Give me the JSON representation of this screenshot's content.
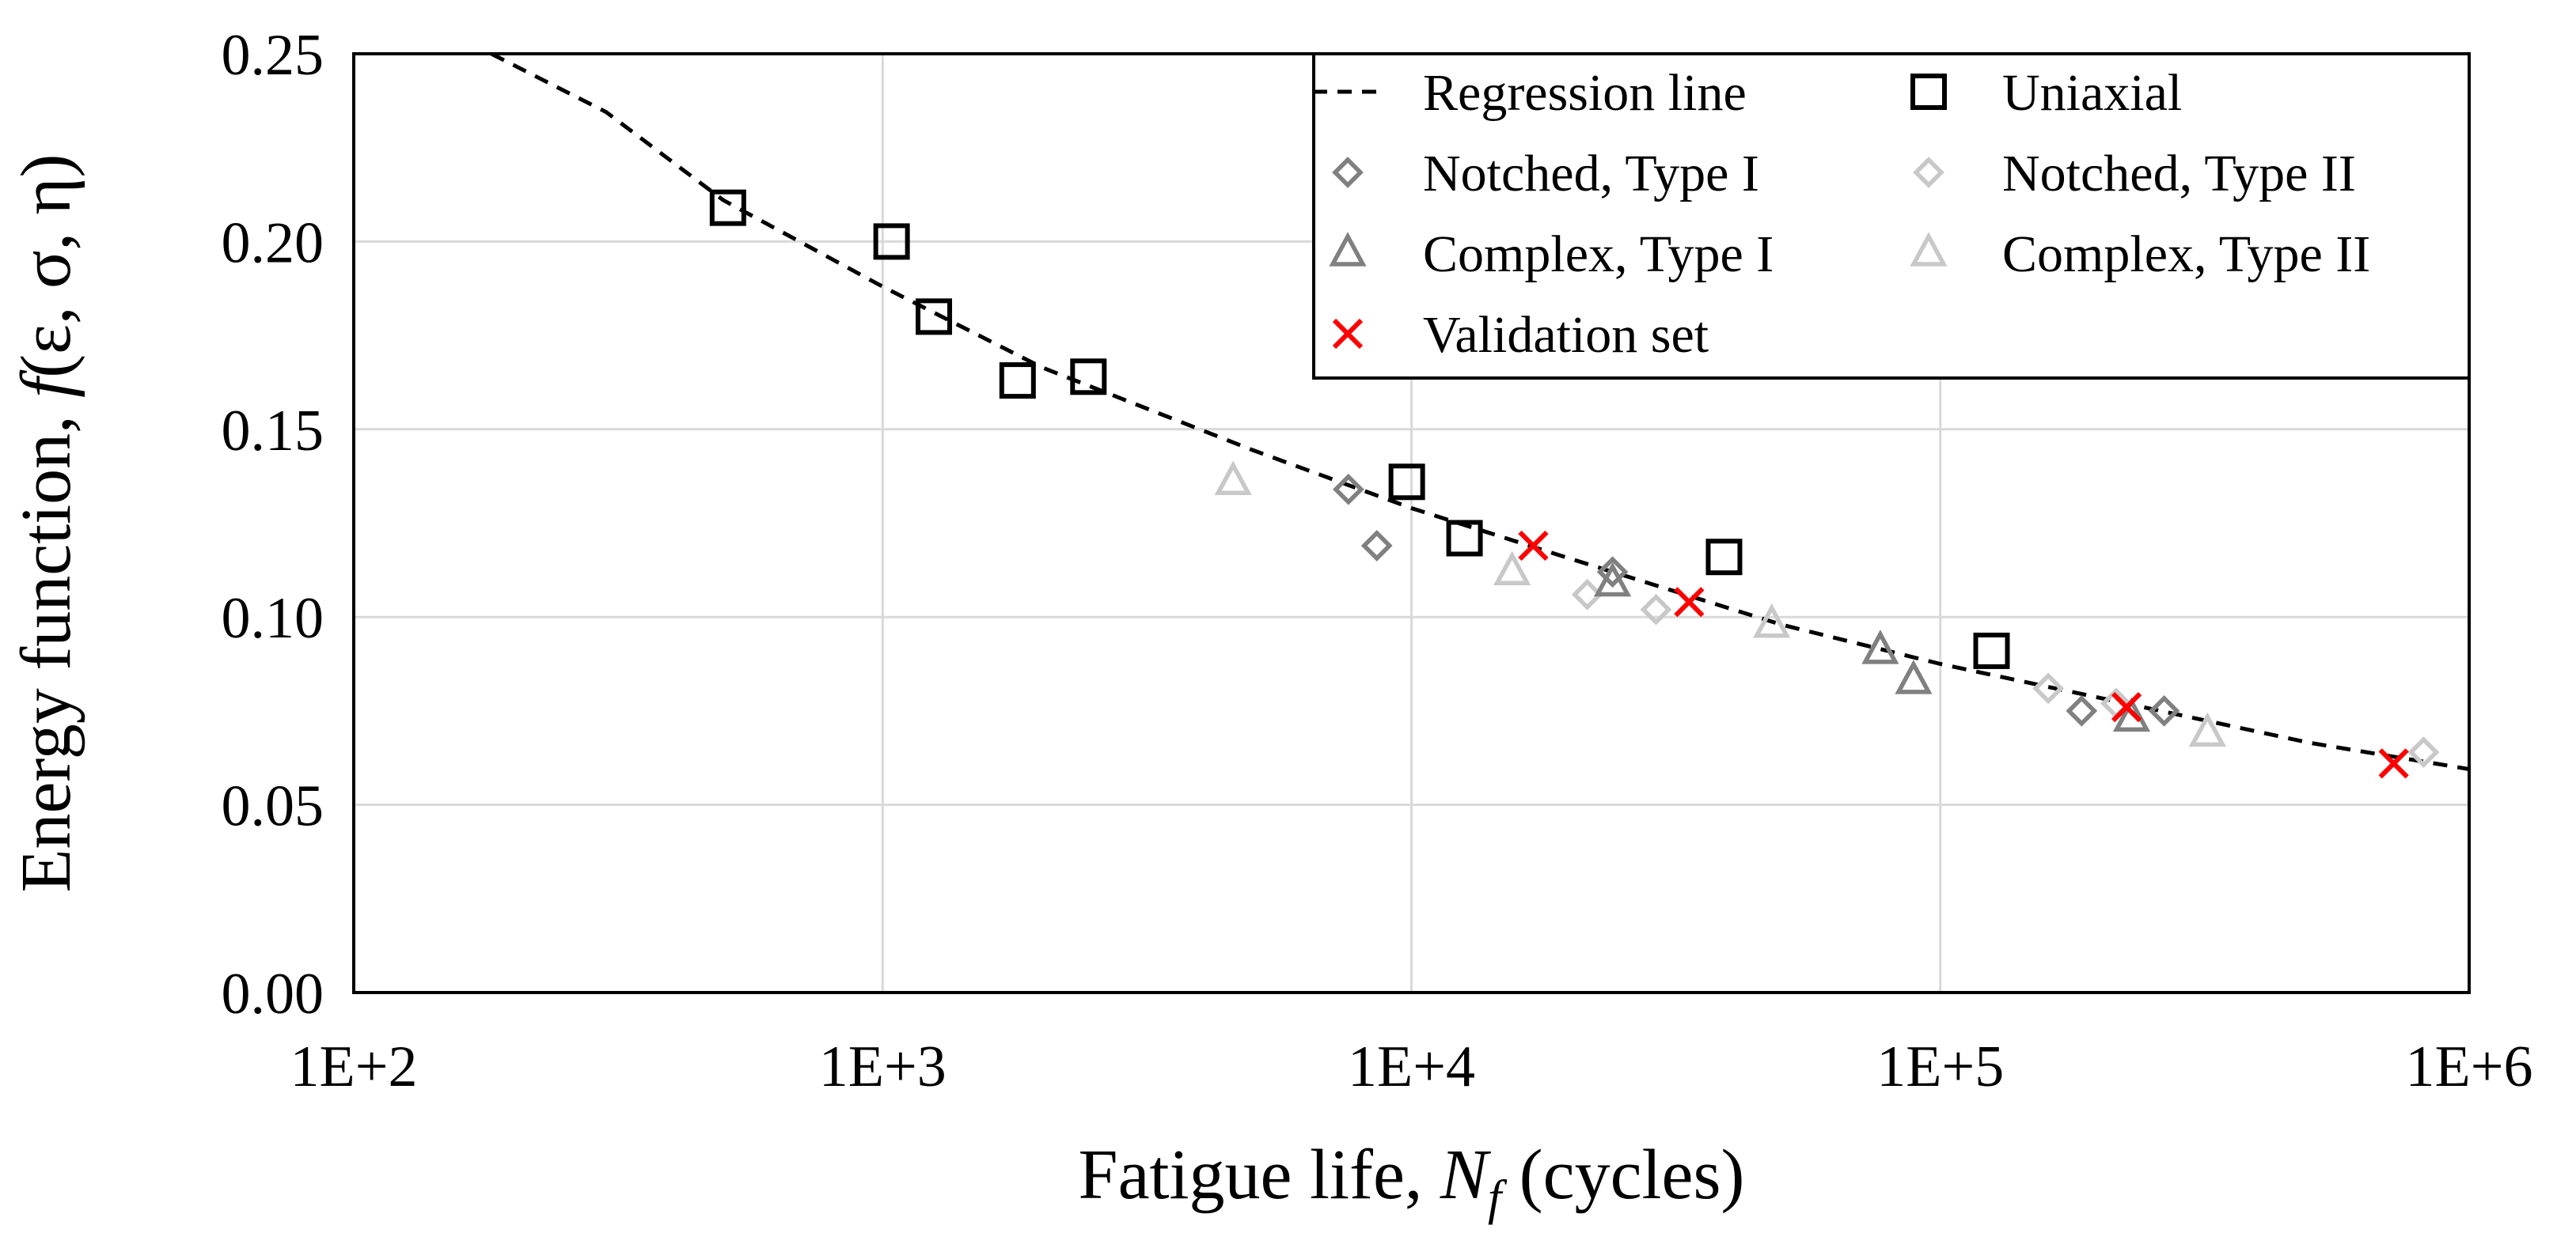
{
  "chart_data": {
    "type": "scatter",
    "x_scale": "log",
    "xlim": [
      100,
      1000000
    ],
    "ylim": [
      0,
      0.25
    ],
    "x_ticks": [
      100,
      1000,
      10000,
      100000,
      1000000
    ],
    "x_tick_labels": [
      "1E+2",
      "1E+3",
      "1E+4",
      "1E+5",
      "1E+6"
    ],
    "y_ticks": [
      0,
      0.05,
      0.1,
      0.15,
      0.2,
      0.25
    ],
    "y_tick_labels": [
      "0.00",
      "0.05",
      "0.10",
      "0.15",
      "0.20",
      "0.25"
    ],
    "grid": true,
    "legend_position": "top-right",
    "xlabel": {
      "prefix": "Fatigue life, ",
      "var": "N",
      "sub": "f",
      "suffix": " (cycles)"
    },
    "ylabel": {
      "prefix": "Energy function, ",
      "var": "f",
      "args": "(ε, σ, η)"
    },
    "regression": {
      "name": "Regression line",
      "points": [
        [
          182,
          0.25
        ],
        [
          300,
          0.2345
        ],
        [
          500,
          0.211
        ],
        [
          1000,
          0.188
        ],
        [
          2000,
          0.1665
        ],
        [
          5000,
          0.1445
        ],
        [
          10000,
          0.129
        ],
        [
          20000,
          0.1155
        ],
        [
          50000,
          0.098
        ],
        [
          100000,
          0.0875
        ],
        [
          200000,
          0.0785
        ],
        [
          500000,
          0.0665
        ],
        [
          1000000,
          0.0595
        ]
      ],
      "color": "#000000"
    },
    "series": [
      {
        "name": "Uniaxial",
        "marker": "square",
        "color": "#000000",
        "points": [
          [
            510,
            0.209
          ],
          [
            1040,
            0.2
          ],
          [
            1250,
            0.18
          ],
          [
            1800,
            0.163
          ],
          [
            2450,
            0.164
          ],
          [
            9800,
            0.136
          ],
          [
            12600,
            0.121
          ],
          [
            39000,
            0.116
          ],
          [
            125000,
            0.091
          ]
        ]
      },
      {
        "name": "Notched, Type I",
        "marker": "diamond",
        "color": "#808080",
        "points": [
          [
            7600,
            0.134
          ],
          [
            8600,
            0.119
          ],
          [
            24000,
            0.112
          ],
          [
            185000,
            0.075
          ],
          [
            265000,
            0.075
          ]
        ]
      },
      {
        "name": "Notched, Type II",
        "marker": "diamond",
        "color": "#c8c8c8",
        "points": [
          [
            21500,
            0.106
          ],
          [
            29000,
            0.102
          ],
          [
            160000,
            0.081
          ],
          [
            215000,
            0.077
          ],
          [
            820000,
            0.064
          ]
        ]
      },
      {
        "name": "Complex, Type I",
        "marker": "triangle",
        "color": "#808080",
        "points": [
          [
            24000,
            0.109
          ],
          [
            77000,
            0.091
          ],
          [
            89000,
            0.083
          ],
          [
            230000,
            0.073
          ]
        ]
      },
      {
        "name": "Complex, Type II",
        "marker": "triangle",
        "color": "#c8c8c8",
        "points": [
          [
            4600,
            0.136
          ],
          [
            15500,
            0.112
          ],
          [
            48000,
            0.098
          ],
          [
            320000,
            0.069
          ]
        ]
      },
      {
        "name": "Validation set",
        "marker": "x",
        "color": "#ff0000",
        "points": [
          [
            17000,
            0.119
          ],
          [
            33500,
            0.104
          ],
          [
            225000,
            0.076
          ],
          [
            720000,
            0.061
          ]
        ]
      }
    ],
    "legend_order": [
      "Regression line",
      "Uniaxial",
      "Notched, Type I",
      "Notched, Type II",
      "Complex, Type I",
      "Complex, Type II",
      "Validation set"
    ]
  }
}
